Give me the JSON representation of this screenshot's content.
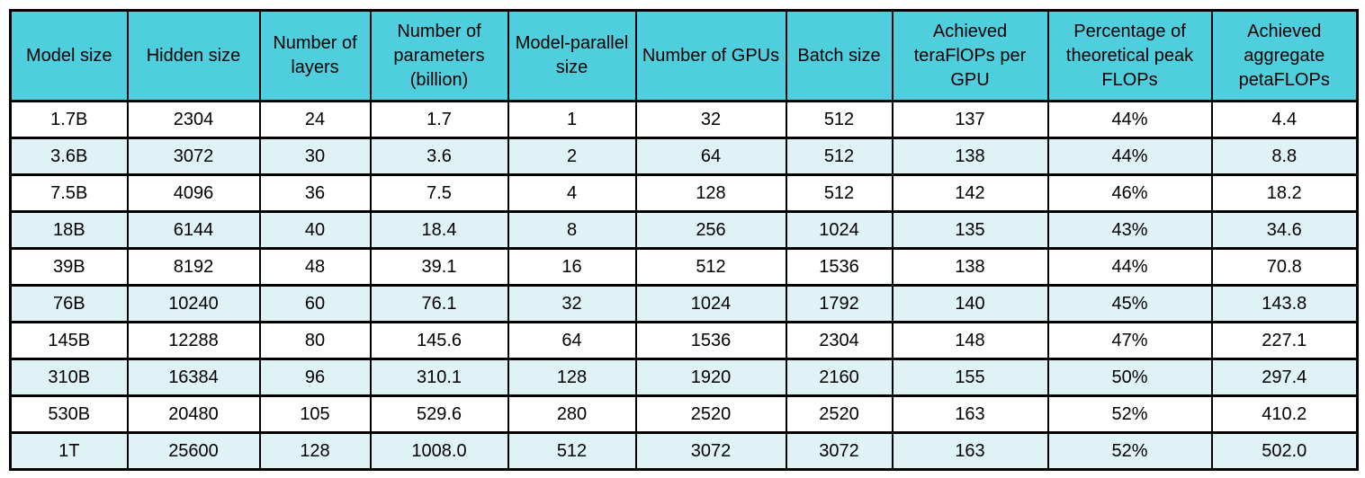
{
  "colors": {
    "header_bg": "#4FCFDE",
    "row_bg": "#FFFFFF",
    "row_alt_bg": "#DFF2F6",
    "border": "#000000",
    "text": "#000000"
  },
  "chart_data": {
    "type": "table",
    "columns": [
      "Model size",
      "Hidden size",
      "Number of layers",
      "Number of parameters (billion)",
      "Model-parallel size",
      "Number of GPUs",
      "Batch size",
      "Achieved teraFlOPs per GPU",
      "Percentage of theoretical peak FLOPs",
      "Achieved aggregate petaFLOPs"
    ],
    "rows": [
      [
        "1.7B",
        "2304",
        "24",
        "1.7",
        "1",
        "32",
        "512",
        "137",
        "44%",
        "4.4"
      ],
      [
        "3.6B",
        "3072",
        "30",
        "3.6",
        "2",
        "64",
        "512",
        "138",
        "44%",
        "8.8"
      ],
      [
        "7.5B",
        "4096",
        "36",
        "7.5",
        "4",
        "128",
        "512",
        "142",
        "46%",
        "18.2"
      ],
      [
        "18B",
        "6144",
        "40",
        "18.4",
        "8",
        "256",
        "1024",
        "135",
        "43%",
        "34.6"
      ],
      [
        "39B",
        "8192",
        "48",
        "39.1",
        "16",
        "512",
        "1536",
        "138",
        "44%",
        "70.8"
      ],
      [
        "76B",
        "10240",
        "60",
        "76.1",
        "32",
        "1024",
        "1792",
        "140",
        "45%",
        "143.8"
      ],
      [
        "145B",
        "12288",
        "80",
        "145.6",
        "64",
        "1536",
        "2304",
        "148",
        "47%",
        "227.1"
      ],
      [
        "310B",
        "16384",
        "96",
        "310.1",
        "128",
        "1920",
        "2160",
        "155",
        "50%",
        "297.4"
      ],
      [
        "530B",
        "20480",
        "105",
        "529.6",
        "280",
        "2520",
        "2520",
        "163",
        "52%",
        "410.2"
      ],
      [
        "1T",
        "25600",
        "128",
        "1008.0",
        "512",
        "3072",
        "3072",
        "163",
        "52%",
        "502.0"
      ]
    ]
  }
}
